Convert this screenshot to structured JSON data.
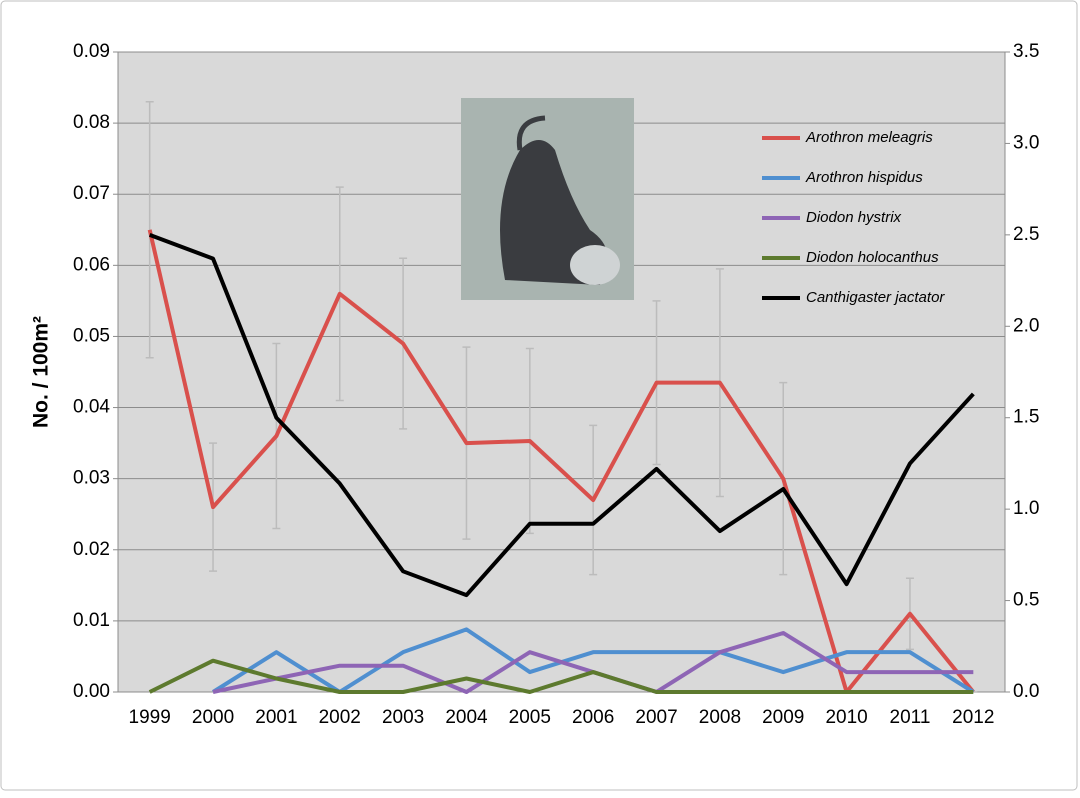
{
  "chart_data": {
    "type": "line",
    "y_label": "No. / 100m²",
    "categories": [
      "1999",
      "2000",
      "2001",
      "2002",
      "2003",
      "2004",
      "2005",
      "2006",
      "2007",
      "2008",
      "2009",
      "2010",
      "2011",
      "2012"
    ],
    "series": [
      {
        "name": "Arothron meleagris",
        "color": "#d9504c",
        "values": [
          0.065,
          0.026,
          0.036,
          0.056,
          0.049,
          0.035,
          0.0353,
          0.027,
          0.0435,
          0.0435,
          0.03,
          0,
          0.011,
          0
        ],
        "errors": [
          0.018,
          0.009,
          0.013,
          0.015,
          0.012,
          0.0135,
          0.013,
          0.0105,
          0.0115,
          0.016,
          0.0135,
          0,
          0.005,
          0
        ]
      },
      {
        "name": "Arothron hispidus",
        "color": "#4f8fd0",
        "values": [
          null,
          0,
          0.0056,
          0,
          0.0056,
          0.0088,
          0.0028,
          0.0056,
          0.0056,
          0.0056,
          0.0028,
          0.0056,
          0.0056,
          0
        ]
      },
      {
        "name": "Diodon hystrix",
        "color": "#8e65b5",
        "values": [
          null,
          0,
          0.0019,
          0.0037,
          0.0037,
          0,
          0.0056,
          0.0028,
          0,
          0.0056,
          0.0083,
          0.0028,
          0.0028,
          0.0028
        ]
      },
      {
        "name": "Diodon holocanthus",
        "color": "#5d7a2e",
        "values": [
          0,
          0.0044,
          0.0019,
          0,
          0,
          0.0019,
          0,
          0.0028,
          0,
          0,
          0,
          0,
          0,
          0
        ]
      },
      {
        "name": "Canthigaster jactator",
        "color": "#000000",
        "axis": "y2",
        "values": [
          2.5,
          2.37,
          1.5,
          1.14,
          0.66,
          0.53,
          0.92,
          0.92,
          1.22,
          0.88,
          1.11,
          0.59,
          1.25,
          1.63
        ]
      }
    ],
    "ylim": [
      0,
      0.09
    ],
    "yticks": [
      {
        "value": 0,
        "label": "0.00"
      },
      0.01,
      0.02,
      0.03,
      0.04,
      0.05,
      0.06,
      0.07,
      0.08,
      0.09
    ],
    "y2lim": [
      0,
      3.5
    ],
    "y2ticks": [
      {
        "value": 0,
        "label": "0.0"
      },
      0.5,
      {
        "value": 1,
        "label": "1.0"
      },
      1.5,
      {
        "value": 2,
        "label": "2.0"
      },
      2.5,
      {
        "value": 3,
        "label": "3.0"
      },
      3.5
    ],
    "grid": true
  }
}
